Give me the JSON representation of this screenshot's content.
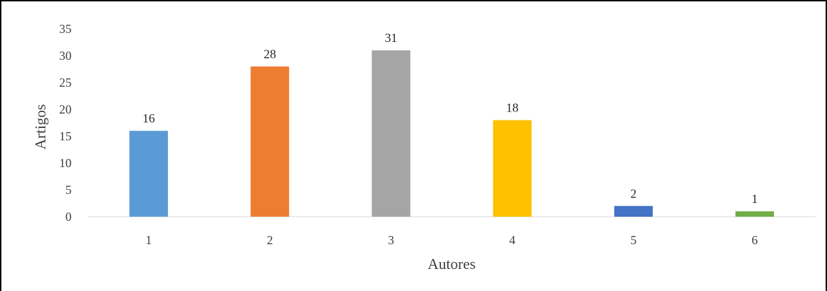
{
  "chart_data": {
    "type": "bar",
    "title": "",
    "categories": [
      "1",
      "2",
      "3",
      "4",
      "5",
      "6"
    ],
    "values": [
      16,
      28,
      31,
      18,
      2,
      1
    ],
    "data_labels": [
      "16",
      "28",
      "31",
      "18",
      "2",
      "1"
    ],
    "colors": [
      "#5B9BD5",
      "#ED7D31",
      "#A5A5A5",
      "#FFC000",
      "#4472C4",
      "#70AD47"
    ],
    "xlabel": "Autores",
    "ylabel": "Artigos",
    "ylim": [
      0,
      35
    ],
    "yticks": [
      0,
      5,
      10,
      15,
      20,
      25,
      30,
      35
    ],
    "ytick_labels": [
      "0",
      "5",
      "10",
      "15",
      "20",
      "25",
      "30",
      "35"
    ],
    "grid": false,
    "legend": "none"
  }
}
